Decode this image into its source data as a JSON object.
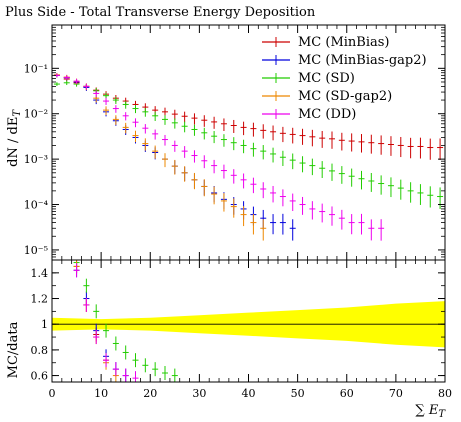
{
  "chart_data": [
    {
      "type": "line",
      "title": "Plus Side - Total Transverse Energy Deposition",
      "ylabel": "dN / dE_T",
      "yscale": "log",
      "xlim": [
        0,
        80
      ],
      "ylim": [
        6e-06,
        0.9
      ],
      "yticks": [
        {
          "value": 0.1,
          "label": "10⁻¹"
        },
        {
          "value": 0.01,
          "label": "10⁻²"
        },
        {
          "value": 0.001,
          "label": "10⁻³"
        },
        {
          "value": 0.0001,
          "label": "10⁻⁴"
        },
        {
          "value": 1e-05,
          "label": "10⁻⁵"
        }
      ],
      "legend_position": "top-right",
      "series": [
        {
          "name": "MC (MinBias)",
          "color": "#cc0000",
          "x": [
            1,
            3,
            5,
            7,
            9,
            11,
            13,
            15,
            17,
            19,
            21,
            23,
            25,
            27,
            29,
            31,
            33,
            35,
            37,
            39,
            41,
            43,
            45,
            47,
            49,
            51,
            53,
            55,
            57,
            59,
            61,
            63,
            65,
            67,
            69,
            71,
            73,
            75,
            77,
            79
          ],
          "y": [
            0.07,
            0.058,
            0.048,
            0.04,
            0.033,
            0.027,
            0.022,
            0.019,
            0.016,
            0.014,
            0.012,
            0.011,
            0.0098,
            0.0088,
            0.008,
            0.0072,
            0.0066,
            0.006,
            0.0055,
            0.005,
            0.0047,
            0.0043,
            0.004,
            0.0037,
            0.0035,
            0.0033,
            0.0031,
            0.0029,
            0.0028,
            0.0026,
            0.0025,
            0.0024,
            0.0023,
            0.0022,
            0.0021,
            0.002,
            0.0019,
            0.0019,
            0.0018,
            0.0018
          ]
        },
        {
          "name": "MC (MinBias-gap2)",
          "color": "#0000dd",
          "x": [
            1,
            3,
            5,
            7,
            9,
            11,
            13,
            15,
            17,
            19,
            21,
            23,
            25,
            27,
            29,
            31,
            33,
            35,
            37,
            39,
            41,
            43,
            45,
            47,
            49
          ],
          "y": [
            0.07,
            0.062,
            0.05,
            0.038,
            0.02,
            0.011,
            0.007,
            0.0045,
            0.003,
            0.002,
            0.0014,
            0.001,
            0.0007,
            0.0005,
            0.00035,
            0.00025,
            0.00018,
            0.00013,
            0.0001,
            8e-05,
            6e-05,
            5e-05,
            4e-05,
            4e-05,
            3e-05
          ]
        },
        {
          "name": "MC (SD)",
          "color": "#22cc00",
          "x": [
            1,
            3,
            5,
            7,
            9,
            11,
            13,
            15,
            17,
            19,
            21,
            23,
            25,
            27,
            29,
            31,
            33,
            35,
            37,
            39,
            41,
            43,
            45,
            47,
            49,
            51,
            53,
            55,
            57,
            59,
            61,
            63,
            65,
            67,
            69,
            71,
            73,
            75,
            77,
            79
          ],
          "y": [
            0.045,
            0.048,
            0.045,
            0.04,
            0.032,
            0.025,
            0.02,
            0.016,
            0.013,
            0.011,
            0.009,
            0.0075,
            0.0063,
            0.0053,
            0.0045,
            0.0038,
            0.0032,
            0.0027,
            0.0023,
            0.002,
            0.0017,
            0.0015,
            0.0013,
            0.0011,
            0.00095,
            0.00082,
            0.00072,
            0.00063,
            0.00055,
            0.00048,
            0.00042,
            0.00037,
            0.00033,
            0.00029,
            0.00026,
            0.00023,
            0.0002,
            0.00018,
            0.00016,
            0.00015
          ]
        },
        {
          "name": "MC (SD-gap2)",
          "color": "#ee8800",
          "x": [
            1,
            3,
            5,
            7,
            9,
            11,
            13,
            15,
            17,
            19,
            21,
            23,
            25,
            27,
            29,
            31,
            33,
            35,
            37,
            39,
            41,
            43
          ],
          "y": [
            0.072,
            0.064,
            0.052,
            0.04,
            0.022,
            0.012,
            0.0075,
            0.005,
            0.0033,
            0.0022,
            0.0015,
            0.001,
            0.0007,
            0.0005,
            0.00035,
            0.00025,
            0.00017,
            0.00012,
            9e-05,
            6e-05,
            4e-05,
            3e-05
          ]
        },
        {
          "name": "MC (DD)",
          "color": "#ee00ee",
          "x": [
            1,
            3,
            5,
            7,
            9,
            11,
            13,
            15,
            17,
            19,
            21,
            23,
            25,
            27,
            29,
            31,
            33,
            35,
            37,
            39,
            41,
            43,
            45,
            47,
            49,
            51,
            53,
            55,
            57,
            59,
            61,
            63,
            65,
            67
          ],
          "y": [
            0.07,
            0.063,
            0.052,
            0.04,
            0.028,
            0.019,
            0.013,
            0.009,
            0.0065,
            0.0048,
            0.0036,
            0.0027,
            0.002,
            0.0015,
            0.0012,
            0.00092,
            0.00072,
            0.00056,
            0.00044,
            0.00035,
            0.00028,
            0.00022,
            0.00018,
            0.00015,
            0.00012,
            0.0001,
            8e-05,
            7e-05,
            6e-05,
            5e-05,
            4e-05,
            4e-05,
            3e-05,
            3e-05
          ]
        }
      ]
    },
    {
      "type": "line",
      "ylabel": "MC/data",
      "xlabel": "∑ E_T",
      "xlim": [
        0,
        80
      ],
      "ylim": [
        0.55,
        1.5
      ],
      "xticks": [
        0,
        10,
        20,
        30,
        40,
        50,
        60,
        70,
        80
      ],
      "yticks": [
        {
          "value": 1.4,
          "label": "1.4"
        },
        {
          "value": 1.2,
          "label": "1.2"
        },
        {
          "value": 1.0,
          "label": "1"
        },
        {
          "value": 0.8,
          "label": "0.8"
        },
        {
          "value": 0.6,
          "label": "0.6"
        }
      ],
      "reference_line": 1.0,
      "uncertainty_band": {
        "color": "#ffff00",
        "x": [
          0,
          10,
          20,
          30,
          40,
          50,
          60,
          70,
          80
        ],
        "halfwidth": [
          0.05,
          0.04,
          0.05,
          0.07,
          0.09,
          0.11,
          0.13,
          0.16,
          0.18
        ]
      },
      "series": [
        {
          "name": "MC (MinBias)",
          "color": "#cc0000",
          "x": [
            5,
            7,
            9,
            11
          ],
          "y": [
            1.45,
            1.15,
            0.92,
            0.72
          ]
        },
        {
          "name": "MC (MinBias-gap2)",
          "color": "#0000dd",
          "x": [
            5,
            7,
            9,
            11,
            13,
            15
          ],
          "y": [
            1.42,
            1.2,
            0.95,
            0.75,
            0.65,
            0.6
          ]
        },
        {
          "name": "MC (SD)",
          "color": "#22cc00",
          "x": [
            5,
            7,
            9,
            11,
            13,
            15,
            17,
            19,
            21,
            23,
            25
          ],
          "y": [
            1.48,
            1.3,
            1.1,
            0.95,
            0.85,
            0.78,
            0.72,
            0.68,
            0.65,
            0.62,
            0.6
          ]
        },
        {
          "name": "MC (SD-gap2)",
          "color": "#ee8800",
          "x": [
            5,
            7,
            9,
            11,
            13
          ],
          "y": [
            1.45,
            1.15,
            0.9,
            0.7,
            0.6
          ]
        },
        {
          "name": "MC (DD)",
          "color": "#ee00ee",
          "x": [
            5,
            7,
            9,
            11,
            13,
            15,
            17
          ],
          "y": [
            1.42,
            1.15,
            0.9,
            0.72,
            0.65,
            0.6,
            0.58
          ]
        }
      ]
    }
  ]
}
